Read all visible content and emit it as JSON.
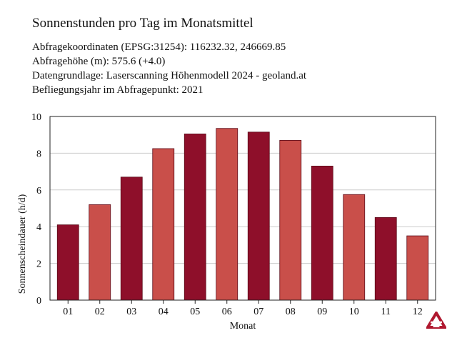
{
  "header": {
    "title": "Sonnenstunden pro Tag im Monatsmittel",
    "lines": [
      "Abfragekoordinaten (EPSG:31254): 116232.32, 246669.85",
      "Abfragehöhe (m): 575.6 (+4.0)",
      "Datengrundlage: Laserscanning Höhenmodell 2024 - geoland.at",
      "Befliegungsjahr im Abfragepunkt: 2021"
    ]
  },
  "colors": {
    "dark": "#8e0f2a",
    "light": "#c94f4a",
    "grid": "#cccccc",
    "axis": "#222222"
  },
  "chart_data": {
    "type": "bar",
    "categories": [
      "01",
      "02",
      "03",
      "04",
      "05",
      "06",
      "07",
      "08",
      "09",
      "10",
      "11",
      "12"
    ],
    "values": [
      4.1,
      5.2,
      6.7,
      8.25,
      9.05,
      9.35,
      9.15,
      8.7,
      7.3,
      5.75,
      4.5,
      3.5
    ],
    "bar_colors": [
      "dark",
      "light",
      "dark",
      "light",
      "dark",
      "light",
      "dark",
      "light",
      "dark",
      "light",
      "dark",
      "light"
    ],
    "xlabel": "Monat",
    "ylabel": "Sonnenscheindauer (h/d)",
    "ylim": [
      0,
      10
    ],
    "yticks": [
      0,
      2,
      4,
      6,
      8,
      10
    ],
    "grid": true
  },
  "logo": {
    "icon": "logo-triangle-icon"
  }
}
